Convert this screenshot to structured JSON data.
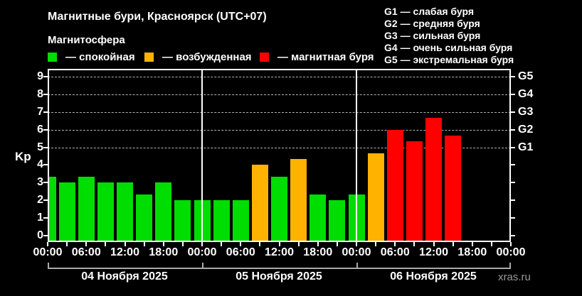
{
  "title": "Магнитные бури, Красноярск (UTC+07)",
  "subtitle": "Магнитосфера",
  "legend": [
    {
      "key": "quiet",
      "label": "— спокойная",
      "color": "#00dd00"
    },
    {
      "key": "active",
      "label": "— возбужденная",
      "color": "#ffb200"
    },
    {
      "key": "storm",
      "label": "— магнитная буря",
      "color": "#ff0000"
    }
  ],
  "storm_scale": [
    "G1 — слабая буря",
    "G2 — средняя буря",
    "G3 — сильная буря",
    "G4 — очень сильная буря",
    "G5 — экстремальная буря"
  ],
  "watermark": "xras.ru",
  "chart_data": {
    "type": "bar",
    "title": "Магнитные бури, Красноярск (UTC+07)",
    "ylabel": "Kp",
    "ylim": [
      0,
      9
    ],
    "yticks": [
      0,
      1,
      2,
      3,
      4,
      5,
      6,
      7,
      8,
      9
    ],
    "grid_levels": [
      5,
      6,
      7,
      8,
      9
    ],
    "grid_style": "dashed",
    "right_axis_labels": [
      {
        "value": 5,
        "label": "G1"
      },
      {
        "value": 6,
        "label": "G2"
      },
      {
        "value": 7,
        "label": "G3"
      },
      {
        "value": 8,
        "label": "G4"
      },
      {
        "value": 9,
        "label": "G5"
      }
    ],
    "x_tick_labels": [
      "00:00",
      "06:00",
      "12:00",
      "18:00",
      "00:00",
      "06:00",
      "12:00",
      "18:00",
      "00:00",
      "06:00",
      "12:00",
      "18:00",
      "00:00"
    ],
    "hours_per_bar": 3,
    "total_hours": 72,
    "days": [
      {
        "date": "04 Ноября 2025",
        "values": [
          3.33,
          3.0,
          3.33,
          3.0,
          3.0,
          2.33,
          3.0,
          2.0
        ]
      },
      {
        "date": "05 Ноября 2025",
        "values": [
          2.0,
          2.0,
          2.0,
          4.0,
          3.33,
          4.33,
          2.33,
          2.0
        ]
      },
      {
        "date": "06 Ноября 2025",
        "values": [
          2.33,
          4.67,
          6.0,
          5.33,
          6.67,
          5.67
        ]
      }
    ],
    "color_rule": {
      "quiet_below": 4,
      "storm_from": 5
    },
    "colors": {
      "quiet": "#00dd00",
      "active": "#ffb200",
      "storm": "#ff0000"
    }
  }
}
